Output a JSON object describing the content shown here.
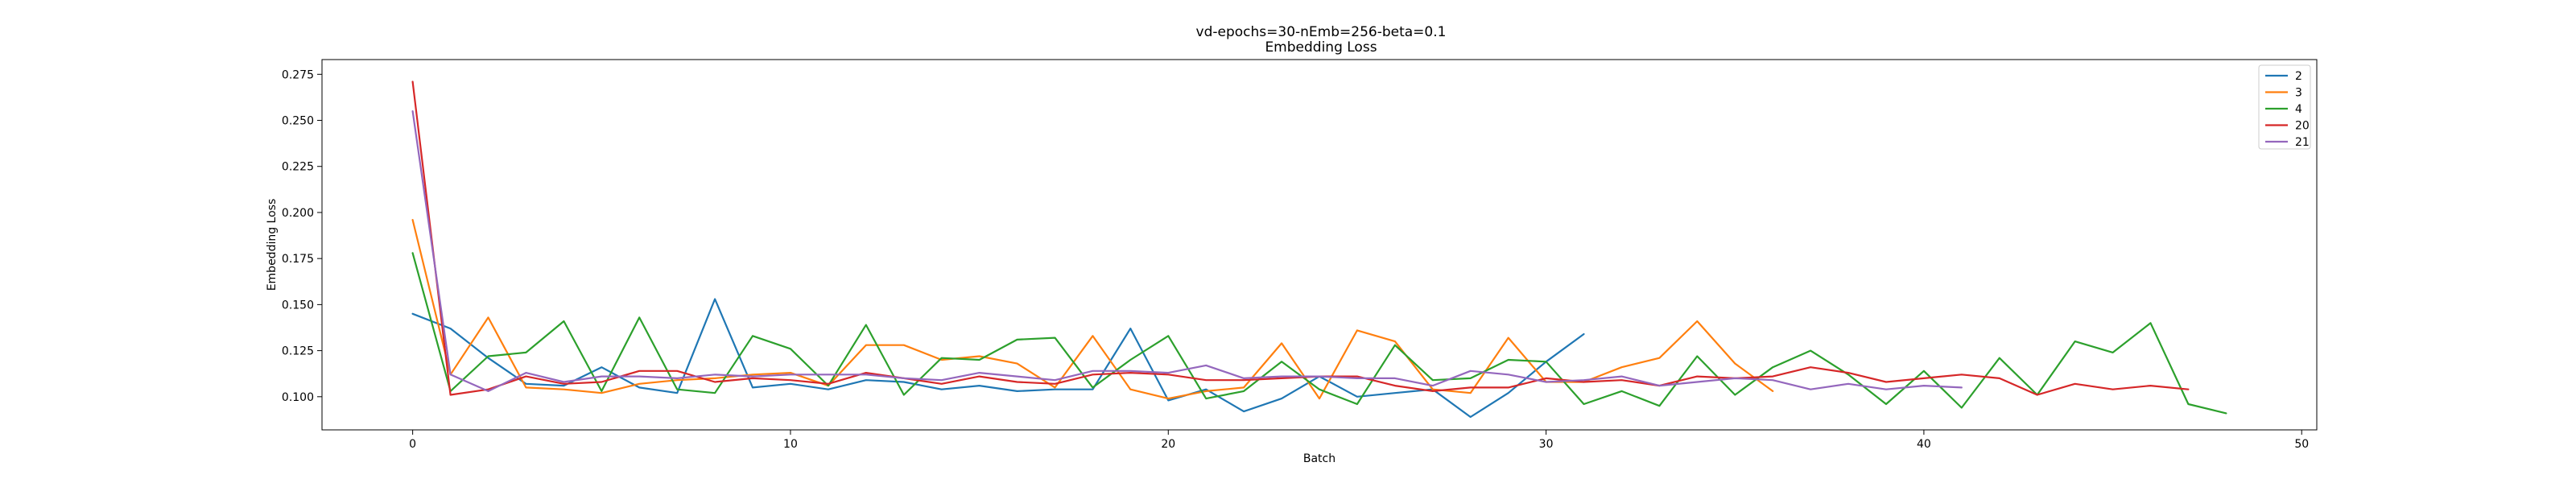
{
  "chart_data": {
    "type": "line",
    "title": "vd-epochs=30-nEmb=256-beta=0.1",
    "subtitle": "Embedding Loss",
    "xlabel": "Batch",
    "ylabel": "Embedding Loss",
    "xlim": [
      -2.4,
      50.4
    ],
    "ylim": [
      0.082,
      0.283
    ],
    "xticks": [
      0,
      10,
      20,
      30,
      40,
      50
    ],
    "yticks": [
      0.1,
      0.125,
      0.15,
      0.175,
      0.2,
      0.225,
      0.25,
      0.275
    ],
    "xtick_labels": [
      "0",
      "10",
      "20",
      "30",
      "40",
      "50"
    ],
    "ytick_labels": [
      "0.100",
      "0.125",
      "0.150",
      "0.175",
      "0.200",
      "0.225",
      "0.250",
      "0.275"
    ],
    "grid": false,
    "legend_position": "top-right",
    "series": [
      {
        "name": "2",
        "color": "#1f77b4",
        "values": [
          0.145,
          0.137,
          0.121,
          0.107,
          0.106,
          0.116,
          0.105,
          0.102,
          0.153,
          0.105,
          0.107,
          0.104,
          0.109,
          0.108,
          0.104,
          0.106,
          0.103,
          0.104,
          0.104,
          0.137,
          0.098,
          0.104,
          0.092,
          0.099,
          0.111,
          0.1,
          0.102,
          0.104,
          0.089,
          0.102,
          0.119,
          0.134
        ]
      },
      {
        "name": "3",
        "color": "#ff7f0e",
        "values": [
          0.196,
          0.112,
          0.143,
          0.105,
          0.104,
          0.102,
          0.107,
          0.109,
          0.11,
          0.112,
          0.113,
          0.106,
          0.128,
          0.128,
          0.12,
          0.122,
          0.118,
          0.105,
          0.133,
          0.104,
          0.099,
          0.103,
          0.105,
          0.129,
          0.099,
          0.136,
          0.13,
          0.104,
          0.102,
          0.132,
          0.108,
          0.108,
          0.116,
          0.121,
          0.141,
          0.118,
          0.103
        ]
      },
      {
        "name": "4",
        "color": "#2ca02c",
        "values": [
          0.178,
          0.103,
          0.122,
          0.124,
          0.141,
          0.103,
          0.143,
          0.104,
          0.102,
          0.133,
          0.126,
          0.106,
          0.139,
          0.101,
          0.121,
          0.12,
          0.131,
          0.132,
          0.105,
          0.12,
          0.133,
          0.099,
          0.103,
          0.119,
          0.104,
          0.096,
          0.128,
          0.109,
          0.11,
          0.12,
          0.119,
          0.096,
          0.103,
          0.095,
          0.122,
          0.101,
          0.116,
          0.125,
          0.112,
          0.096,
          0.114,
          0.094,
          0.121,
          0.101,
          0.13,
          0.124,
          0.14,
          0.096,
          0.091
        ]
      },
      {
        "name": "20",
        "color": "#d62728",
        "values": [
          0.271,
          0.101,
          0.104,
          0.111,
          0.107,
          0.108,
          0.114,
          0.114,
          0.108,
          0.11,
          0.109,
          0.107,
          0.113,
          0.11,
          0.107,
          0.111,
          0.108,
          0.107,
          0.112,
          0.113,
          0.112,
          0.109,
          0.109,
          0.11,
          0.111,
          0.111,
          0.106,
          0.103,
          0.105,
          0.105,
          0.11,
          0.108,
          0.109,
          0.106,
          0.111,
          0.11,
          0.111,
          0.116,
          0.113,
          0.108,
          0.11,
          0.112,
          0.11,
          0.101,
          0.107,
          0.104,
          0.106,
          0.104
        ]
      },
      {
        "name": "21",
        "color": "#9467bd",
        "values": [
          0.255,
          0.112,
          0.103,
          0.113,
          0.108,
          0.111,
          0.111,
          0.11,
          0.112,
          0.111,
          0.112,
          0.112,
          0.112,
          0.11,
          0.109,
          0.113,
          0.111,
          0.109,
          0.114,
          0.114,
          0.113,
          0.117,
          0.11,
          0.111,
          0.111,
          0.11,
          0.11,
          0.106,
          0.114,
          0.112,
          0.108,
          0.109,
          0.111,
          0.106,
          0.108,
          0.11,
          0.109,
          0.104,
          0.107,
          0.104,
          0.106,
          0.105
        ]
      }
    ]
  }
}
